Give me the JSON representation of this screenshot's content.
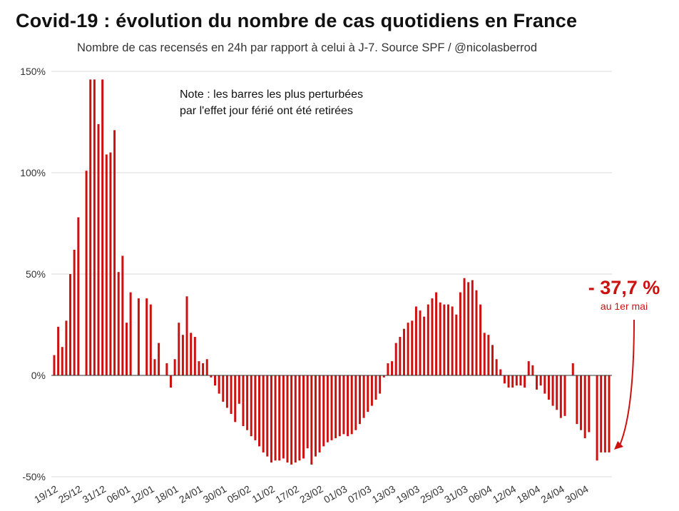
{
  "title": "Covid-19 : évolution du nombre de cas quotidiens en France",
  "subtitle": "Nombre de cas recensés en 24h par rapport à celui à J-7. Source SPF / @nicolasberrod",
  "note": [
    "Note : les barres les plus perturbées",
    "par l'effet jour férié ont été retirées"
  ],
  "callout": {
    "main": "- 37,7 %",
    "sub": "au 1er mai"
  },
  "colors": {
    "bar": "#cc1111",
    "grid": "#d8d8d8",
    "axis": "#333333"
  },
  "chart_data": {
    "type": "bar",
    "title": "Covid-19 : évolution du nombre de cas quotidiens en France",
    "xlabel": "",
    "ylabel": "",
    "y_unit": "%",
    "ylim": [
      -50,
      150
    ],
    "yticks": [
      -50,
      0,
      50,
      100,
      150
    ],
    "ytick_labels": [
      "-50%",
      "0%",
      "50%",
      "100%",
      "150%"
    ],
    "grid": true,
    "legend": "none",
    "x_tick_labels": [
      "19/12",
      "25/12",
      "31/12",
      "06/01",
      "12/01",
      "18/01",
      "24/01",
      "30/01",
      "05/02",
      "11/02",
      "17/02",
      "23/02",
      "01/03",
      "07/03",
      "13/03",
      "19/03",
      "25/03",
      "31/03",
      "06/04",
      "12/04",
      "18/04",
      "24/04",
      "30/04"
    ],
    "x_start": "19/12",
    "x_end": "01/05",
    "values": [
      10,
      24,
      14,
      27,
      50,
      62,
      78,
      null,
      101,
      146,
      146,
      124,
      146,
      109,
      110,
      121,
      51,
      59,
      26,
      41,
      null,
      38,
      null,
      38,
      35,
      8,
      16,
      null,
      6,
      -6,
      8,
      26,
      20,
      39,
      21,
      19,
      7,
      6,
      8,
      -1,
      -5,
      -9,
      -13,
      -16,
      -19,
      -23,
      -14,
      -25,
      -27,
      -30,
      -32,
      -35,
      -38,
      -40,
      -43,
      -42,
      -42,
      -41,
      -43,
      -44,
      -43,
      -42,
      -41,
      -36,
      -44,
      -40,
      -38,
      -35,
      -33,
      -32,
      -31,
      -30,
      -29,
      -30,
      -29,
      -27,
      -24,
      -21,
      -18,
      -15,
      -12,
      -9,
      -1,
      6,
      7,
      16,
      19,
      23,
      26,
      27,
      34,
      32,
      29,
      35,
      38,
      41,
      36,
      35,
      35,
      34,
      30,
      41,
      48,
      46,
      47,
      42,
      35,
      21,
      20,
      15,
      8,
      3,
      -4,
      -6,
      -6,
      -5,
      -5,
      -6,
      7,
      5,
      -7,
      -5,
      -9,
      -12,
      -15,
      -17,
      -21,
      -20,
      null,
      6,
      -24,
      -27,
      -31,
      -28,
      null,
      -42,
      -38,
      -38,
      -38
    ]
  }
}
